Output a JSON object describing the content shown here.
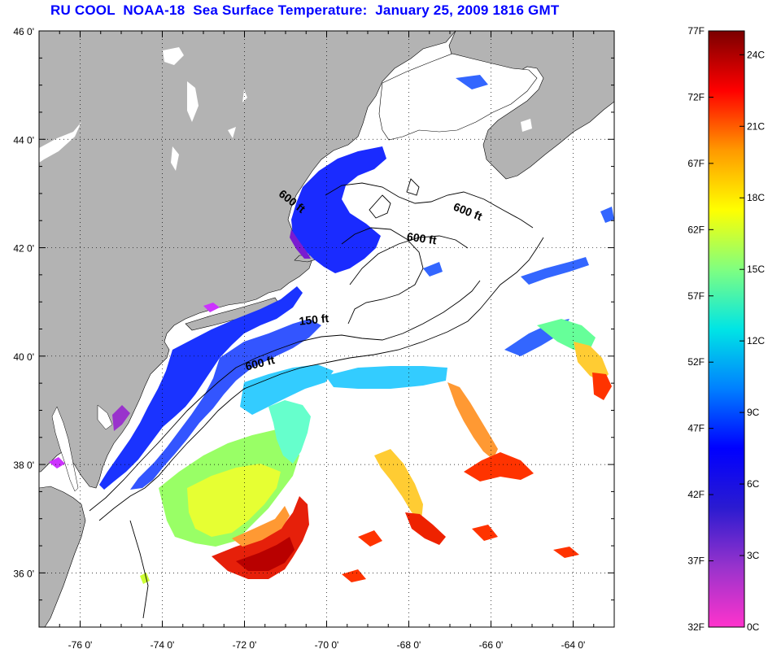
{
  "title": "RU COOL  NOAA-18  Sea Surface Temperature:  January 25, 2009 1816 GMT",
  "map": {
    "lon_range": [
      -77,
      -63
    ],
    "lat_range": [
      35,
      46
    ],
    "lon_ticks": [
      {
        "value": -76,
        "label": "-76 0'"
      },
      {
        "value": -74,
        "label": "-74 0'"
      },
      {
        "value": -72,
        "label": "-72 0'"
      },
      {
        "value": -70,
        "label": "-70 0'"
      },
      {
        "value": -68,
        "label": "-68 0'"
      },
      {
        "value": -66,
        "label": "-66 0'"
      },
      {
        "value": -64,
        "label": "-64 0'"
      }
    ],
    "lat_ticks": [
      {
        "value": 46,
        "label": "46 0'"
      },
      {
        "value": 44,
        "label": "44 0'"
      },
      {
        "value": 42,
        "label": "42 0'"
      },
      {
        "value": 40,
        "label": "40 0'"
      },
      {
        "value": 38,
        "label": "38 0'"
      },
      {
        "value": 36,
        "label": "36 0'"
      }
    ],
    "grid": "dotted",
    "land_color": "#b3b3b3",
    "ocean_color": "#ffffff",
    "contour_labels": [
      {
        "text": "600 ft",
        "rotate": 38,
        "lon": -70.9,
        "lat": 42.8
      },
      {
        "text": "600 ft",
        "rotate": 22,
        "lon": -66.6,
        "lat": 42.6
      },
      {
        "text": "600 ft",
        "rotate": 8,
        "lon": -67.7,
        "lat": 42.1
      },
      {
        "text": "150 ft",
        "rotate": -6,
        "lon": -70.3,
        "lat": 40.6
      },
      {
        "text": "600 ft",
        "rotate": -14,
        "lon": -71.6,
        "lat": 39.8
      }
    ]
  },
  "colorbar": {
    "f_ticks": [
      {
        "value": 77,
        "label": "77F"
      },
      {
        "value": 72,
        "label": "72F"
      },
      {
        "value": 67,
        "label": "67F"
      },
      {
        "value": 62,
        "label": "62F"
      },
      {
        "value": 57,
        "label": "57F"
      },
      {
        "value": 52,
        "label": "52F"
      },
      {
        "value": 47,
        "label": "47F"
      },
      {
        "value": 42,
        "label": "42F"
      },
      {
        "value": 37,
        "label": "37F"
      },
      {
        "value": 32,
        "label": "32F"
      }
    ],
    "c_ticks": [
      {
        "value": 24,
        "label": "24C"
      },
      {
        "value": 21,
        "label": "21C"
      },
      {
        "value": 18,
        "label": "18C"
      },
      {
        "value": 15,
        "label": "15C"
      },
      {
        "value": 12,
        "label": "12C"
      },
      {
        "value": 9,
        "label": "9C"
      },
      {
        "value": 6,
        "label": "6C"
      },
      {
        "value": 3,
        "label": "3C"
      },
      {
        "value": 0,
        "label": "0C"
      }
    ],
    "f_range": [
      32,
      77
    ],
    "color_stops": [
      "#ff33cc",
      "#9933cc",
      "#2b1bd0",
      "#0000ff",
      "#0080ff",
      "#00e5e5",
      "#80ff80",
      "#ffff00",
      "#ff9900",
      "#ff0000",
      "#7a0000"
    ]
  },
  "sst_colors": {
    "cold_blue": "#1a33ff",
    "mid_blue": "#3366ff",
    "cyan": "#33ccff",
    "green": "#99ff66",
    "yellow": "#ffff33",
    "orange": "#ff9933",
    "red": "#ff3300",
    "dark_red": "#cc0000",
    "purple": "#9933cc",
    "magenta": "#cc33ff"
  }
}
